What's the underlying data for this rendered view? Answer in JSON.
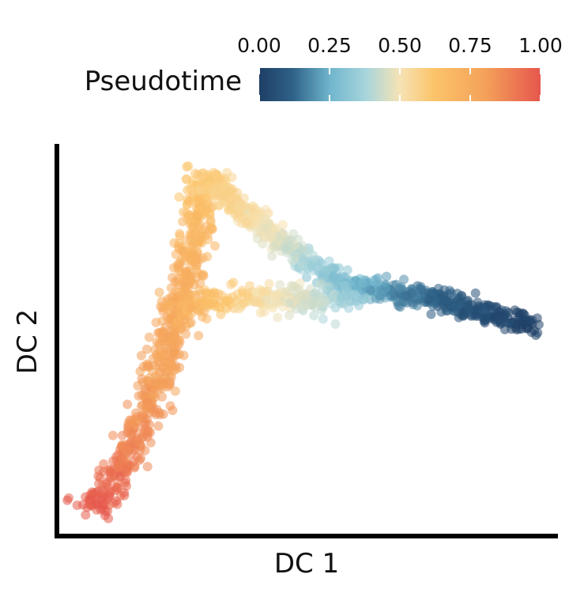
{
  "chart_data": {
    "type": "scatter",
    "title": "",
    "xlabel": "DC 1",
    "ylabel": "DC 2",
    "show_axis_ticks": false,
    "grid": false,
    "xlim": [
      0,
      1
    ],
    "ylim": [
      0,
      1
    ],
    "color_by": "pseudotime",
    "legend": {
      "title": "Pseudotime",
      "placement": "top",
      "ticks": [
        "0.00",
        "0.25",
        "0.50",
        "0.75",
        "1.00"
      ],
      "tick_values": [
        0,
        0.25,
        0.5,
        0.75,
        1.0
      ]
    },
    "colormap": [
      {
        "stop": 0.0,
        "color": "#1f3f66"
      },
      {
        "stop": 0.12,
        "color": "#2f6288"
      },
      {
        "stop": 0.25,
        "color": "#6fb5cc"
      },
      {
        "stop": 0.38,
        "color": "#a8d5dc"
      },
      {
        "stop": 0.5,
        "color": "#f6e3b5"
      },
      {
        "stop": 0.62,
        "color": "#fcc46a"
      },
      {
        "stop": 0.8,
        "color": "#f4a25a"
      },
      {
        "stop": 1.0,
        "color": "#e6574d"
      }
    ],
    "point_opacity": 0.55,
    "trajectory": {
      "description_of_branches": [
        "lower-left arm",
        "upper-right arm",
        "middle branch"
      ],
      "arms": [
        {
          "points": [
            [
              0.05,
              0.05,
              1.0
            ],
            [
              0.1,
              0.12,
              0.95
            ],
            [
              0.14,
              0.2,
              0.88
            ],
            [
              0.18,
              0.35,
              0.82
            ],
            [
              0.22,
              0.5,
              0.78
            ],
            [
              0.26,
              0.7,
              0.72
            ],
            [
              0.28,
              0.85,
              0.65
            ],
            [
              0.29,
              0.93,
              0.6
            ]
          ],
          "spread": 0.018,
          "count": 650
        },
        {
          "points": [
            [
              0.29,
              0.93,
              0.6
            ],
            [
              0.36,
              0.85,
              0.55
            ],
            [
              0.45,
              0.75,
              0.45
            ],
            [
              0.55,
              0.66,
              0.3
            ],
            [
              0.65,
              0.63,
              0.2
            ],
            [
              0.78,
              0.6,
              0.1
            ],
            [
              0.88,
              0.56,
              0.04
            ],
            [
              0.96,
              0.54,
              0.0
            ]
          ],
          "spread": 0.014,
          "count": 750
        },
        {
          "points": [
            [
              0.22,
              0.58,
              0.74
            ],
            [
              0.32,
              0.6,
              0.62
            ],
            [
              0.42,
              0.61,
              0.5
            ],
            [
              0.52,
              0.6,
              0.42
            ],
            [
              0.6,
              0.62,
              0.32
            ]
          ],
          "spread": 0.018,
          "count": 260
        }
      ]
    }
  }
}
